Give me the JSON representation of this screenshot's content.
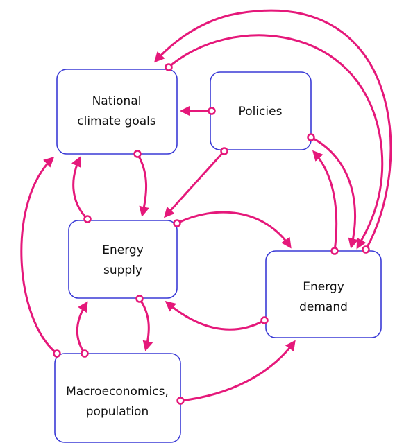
{
  "nodes": [
    {
      "lines": [
        "National",
        "climate goals"
      ]
    },
    {
      "lines": [
        "Policies"
      ]
    },
    {
      "lines": [
        "Energy",
        "supply"
      ]
    },
    {
      "lines": [
        "Energy",
        "demand"
      ]
    },
    {
      "lines": [
        "Macroeconomics,",
        "population"
      ]
    }
  ]
}
